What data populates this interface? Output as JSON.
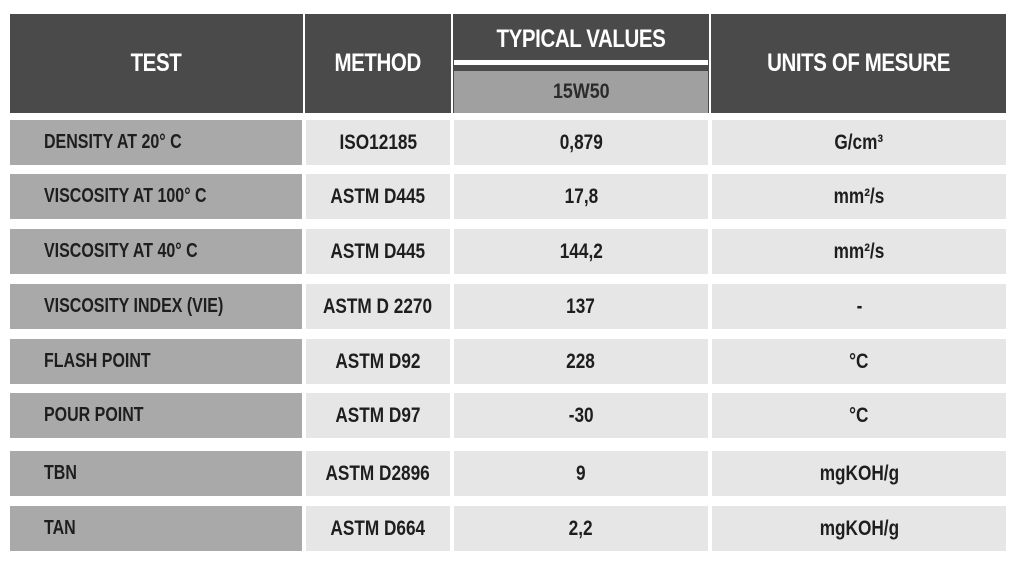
{
  "header": {
    "test": "TEST",
    "method": "METHOD",
    "typical_values": "TYPICAL VALUES",
    "grade": "15W50",
    "units": "UNITS OF MESURE"
  },
  "rows": [
    {
      "test": "DENSITY AT 20° C",
      "method": "ISO12185",
      "value": "0,879",
      "unit": "G/cm³"
    },
    {
      "test": "VISCOSITY AT 100° C",
      "method": "ASTM D445",
      "value": "17,8",
      "unit": "mm²/s"
    },
    {
      "test": "VISCOSITY AT 40° C",
      "method": "ASTM D445",
      "value": "144,2",
      "unit": "mm²/s"
    },
    {
      "test": "VISCOSITY INDEX (VIE)",
      "method": "ASTM D 2270",
      "value": "137",
      "unit": "-"
    },
    {
      "test": "FLASH POINT",
      "method": "ASTM D92",
      "value": "228",
      "unit": "°C"
    },
    {
      "test": "POUR POINT",
      "method": "ASTM D97",
      "value": "-30",
      "unit": "°C"
    },
    {
      "test": "TBN",
      "method": "ASTM D2896",
      "value": "9",
      "unit": "mgKOH/g"
    },
    {
      "test": "TAN",
      "method": "ASTM D664",
      "value": "2,2",
      "unit": "mgKOH/g"
    }
  ]
}
